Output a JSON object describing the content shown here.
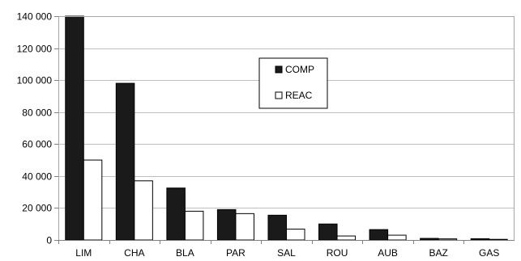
{
  "chart_data": {
    "type": "bar",
    "categories": [
      "LIM",
      "CHA",
      "BLA",
      "PAR",
      "SAL",
      "ROU",
      "AUB",
      "BAZ",
      "GAS"
    ],
    "series": [
      {
        "name": "COMP",
        "values": [
          140000,
          98000,
          32500,
          19000,
          15500,
          10000,
          6500,
          1000,
          800
        ],
        "color": "#1a1a1a"
      },
      {
        "name": "REAC",
        "values": [
          50000,
          37000,
          18000,
          16500,
          6800,
          2500,
          3000,
          700,
          400
        ],
        "color": "#ffffff"
      }
    ],
    "ylim": [
      0,
      140000
    ],
    "yticks": [
      0,
      20000,
      40000,
      60000,
      80000,
      100000,
      120000,
      140000
    ],
    "ytick_labels": [
      "0",
      "20 000",
      "40 000",
      "60 000",
      "80 000",
      "100 000",
      "120 000",
      "140 000"
    ],
    "grid": true,
    "legend_position": "top-center",
    "title": "",
    "xlabel": "",
    "ylabel": ""
  }
}
